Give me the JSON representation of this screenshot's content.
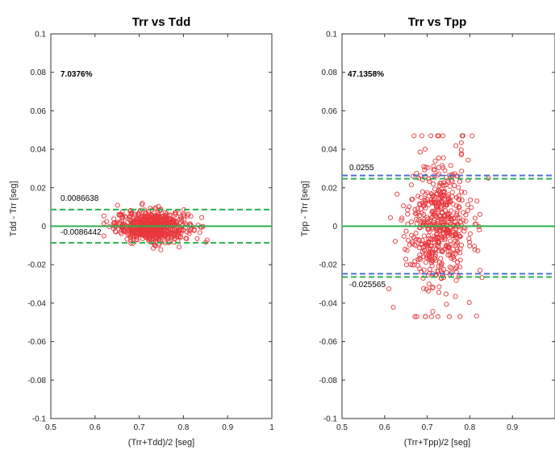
{
  "chart_data": [
    {
      "type": "scatter",
      "title": "Trr vs Tdd",
      "xlabel": "(Trr+Tdd)/2 [seg]",
      "ylabel": "Tdd - Trr  [seg]",
      "xlim": [
        0.5,
        1.0
      ],
      "ylim": [
        -0.1,
        0.1
      ],
      "x_ticks": [
        "0.5",
        "0.6",
        "0.7",
        "0.8",
        "0.9",
        "1"
      ],
      "y_ticks": [
        "0.1",
        "0.08",
        "0.06",
        "0.04",
        "0.02",
        "0",
        "-0.02",
        "-0.04",
        "-0.06",
        "-0.08",
        "-0.1"
      ],
      "percent_label": "7.0376%",
      "upper_loa": 0.0086638,
      "upper_loa_label": "0.0086638",
      "lower_loa": -0.0086442,
      "lower_loa_label": "-0.0086442",
      "mean_line": 0.0,
      "scatter_summary": {
        "x_center": 0.73,
        "x_spread": 0.055,
        "x_range": [
          0.62,
          0.87
        ],
        "y_spread": 0.004
      },
      "grid": false
    },
    {
      "type": "scatter",
      "title": "Trr vs Tpp",
      "xlabel": "(Trr+Tpp)/2 [seg]",
      "ylabel": "Tpp - Trr  [seg]",
      "xlim": [
        0.5,
        1.0
      ],
      "ylim": [
        -0.1,
        0.1
      ],
      "x_ticks": [
        "0.5",
        "0.6",
        "0.7",
        "0.8",
        "0.9",
        "1"
      ],
      "y_ticks": [
        "0.1",
        "0.08",
        "0.06",
        "0.04",
        "0.02",
        "0",
        "-0.02",
        "-0.04",
        "-0.06",
        "-0.08",
        "-0.1"
      ],
      "percent_label": "47.1358%",
      "upper_loa": 0.0255,
      "upper_loa_label": "0.0255",
      "lower_loa": -0.025565,
      "lower_loa_label": "-0.025565",
      "mean_line": 0.0,
      "scatter_summary": {
        "x_center": 0.73,
        "x_spread": 0.05,
        "x_range": [
          0.61,
          0.89
        ],
        "y_spread": 0.015
      },
      "grid": false
    }
  ],
  "colors": {
    "markers": "#e8383c",
    "mean_line": "#2bb24c",
    "limit_green": "#2bb24c",
    "limit_blue": "#4a6fd8",
    "axis": "#333333"
  }
}
